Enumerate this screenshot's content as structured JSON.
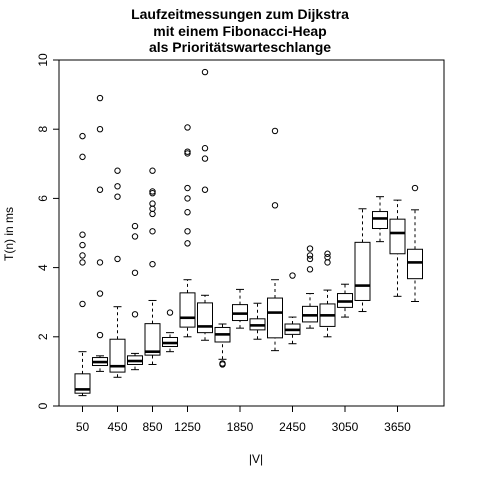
{
  "chart_data": {
    "type": "boxplot",
    "title": [
      "Laufzeitmessungen zum Dijkstra",
      "mit einem Fibonacci-Heap",
      "als Prioritätswarteschlange"
    ],
    "xlabel": "|V|",
    "ylabel": "T(n) in ms",
    "ylim": [
      0,
      10
    ],
    "y_ticks": [
      0,
      2,
      4,
      6,
      8,
      10
    ],
    "x_ticks": [
      50,
      450,
      850,
      1250,
      1850,
      2450,
      3050,
      3650
    ],
    "categories": [
      50,
      250,
      450,
      650,
      850,
      1050,
      1250,
      1450,
      1650,
      1850,
      2050,
      2250,
      2450,
      2650,
      2850,
      3050,
      3250,
      3450,
      3650,
      3850
    ],
    "boxes": [
      {
        "x": 50,
        "wl": 0.3,
        "q1": 0.37,
        "med": 0.48,
        "q3": 0.93,
        "wh": 1.57,
        "out": [
          2.95,
          4.15,
          4.35,
          4.65,
          4.95,
          7.2,
          7.8
        ]
      },
      {
        "x": 250,
        "wl": 1.0,
        "q1": 1.17,
        "med": 1.27,
        "q3": 1.4,
        "wh": 1.45,
        "out": [
          2.05,
          3.25,
          4.15,
          6.25,
          8.0,
          8.9
        ]
      },
      {
        "x": 450,
        "wl": 0.83,
        "q1": 0.98,
        "med": 1.15,
        "q3": 1.93,
        "wh": 2.87,
        "out": [
          4.25,
          6.05,
          6.35,
          6.8
        ]
      },
      {
        "x": 650,
        "wl": 1.05,
        "q1": 1.2,
        "med": 1.3,
        "q3": 1.45,
        "wh": 1.52,
        "out": [
          2.65,
          3.85,
          4.9,
          5.2
        ]
      },
      {
        "x": 850,
        "wl": 1.2,
        "q1": 1.47,
        "med": 1.57,
        "q3": 2.38,
        "wh": 3.05,
        "out": [
          4.1,
          5.05,
          5.55,
          5.7,
          5.85,
          6.15,
          6.2,
          6.8
        ]
      },
      {
        "x": 1050,
        "wl": 1.57,
        "q1": 1.72,
        "med": 1.82,
        "q3": 1.98,
        "wh": 2.12,
        "out": [
          2.7
        ]
      },
      {
        "x": 1250,
        "wl": 2.0,
        "q1": 2.28,
        "med": 2.55,
        "q3": 3.27,
        "wh": 3.65,
        "out": [
          4.7,
          5.05,
          5.6,
          6.0,
          6.3,
          7.3,
          7.35,
          8.05
        ]
      },
      {
        "x": 1450,
        "wl": 1.9,
        "q1": 2.12,
        "med": 2.3,
        "q3": 2.98,
        "wh": 3.2,
        "out": [
          6.25,
          7.15,
          7.45,
          9.65
        ]
      },
      {
        "x": 1650,
        "wl": 1.35,
        "q1": 1.85,
        "med": 2.07,
        "q3": 2.27,
        "wh": 2.37,
        "out": [
          1.2,
          1.23
        ]
      },
      {
        "x": 1850,
        "wl": 2.25,
        "q1": 2.47,
        "med": 2.67,
        "q3": 2.93,
        "wh": 3.37,
        "out": []
      },
      {
        "x": 2050,
        "wl": 1.93,
        "q1": 2.2,
        "med": 2.33,
        "q3": 2.52,
        "wh": 2.97,
        "out": []
      },
      {
        "x": 2250,
        "wl": 1.6,
        "q1": 1.97,
        "med": 2.7,
        "q3": 3.12,
        "wh": 3.65,
        "out": [
          5.8,
          7.95
        ]
      },
      {
        "x": 2450,
        "wl": 1.8,
        "q1": 2.07,
        "med": 2.2,
        "q3": 2.37,
        "wh": 2.57,
        "out": [
          3.77
        ]
      },
      {
        "x": 2650,
        "wl": 2.25,
        "q1": 2.43,
        "med": 2.62,
        "q3": 2.88,
        "wh": 3.25,
        "out": [
          3.95,
          4.25,
          4.35,
          4.55
        ]
      },
      {
        "x": 2850,
        "wl": 2.0,
        "q1": 2.3,
        "med": 2.62,
        "q3": 2.95,
        "wh": 3.35,
        "out": [
          4.15,
          4.3,
          4.4
        ]
      },
      {
        "x": 3050,
        "wl": 2.57,
        "q1": 2.85,
        "med": 3.02,
        "q3": 3.25,
        "wh": 3.52,
        "out": []
      },
      {
        "x": 3250,
        "wl": 2.73,
        "q1": 3.05,
        "med": 3.48,
        "q3": 4.73,
        "wh": 5.7,
        "out": []
      },
      {
        "x": 3450,
        "wl": 4.75,
        "q1": 5.13,
        "med": 5.42,
        "q3": 5.62,
        "wh": 6.05,
        "out": []
      },
      {
        "x": 3650,
        "wl": 3.17,
        "q1": 4.4,
        "med": 5.0,
        "q3": 5.4,
        "wh": 5.95,
        "out": []
      },
      {
        "x": 3850,
        "wl": 3.02,
        "q1": 3.68,
        "med": 4.15,
        "q3": 4.53,
        "wh": 5.67,
        "out": [
          6.3
        ]
      }
    ]
  }
}
